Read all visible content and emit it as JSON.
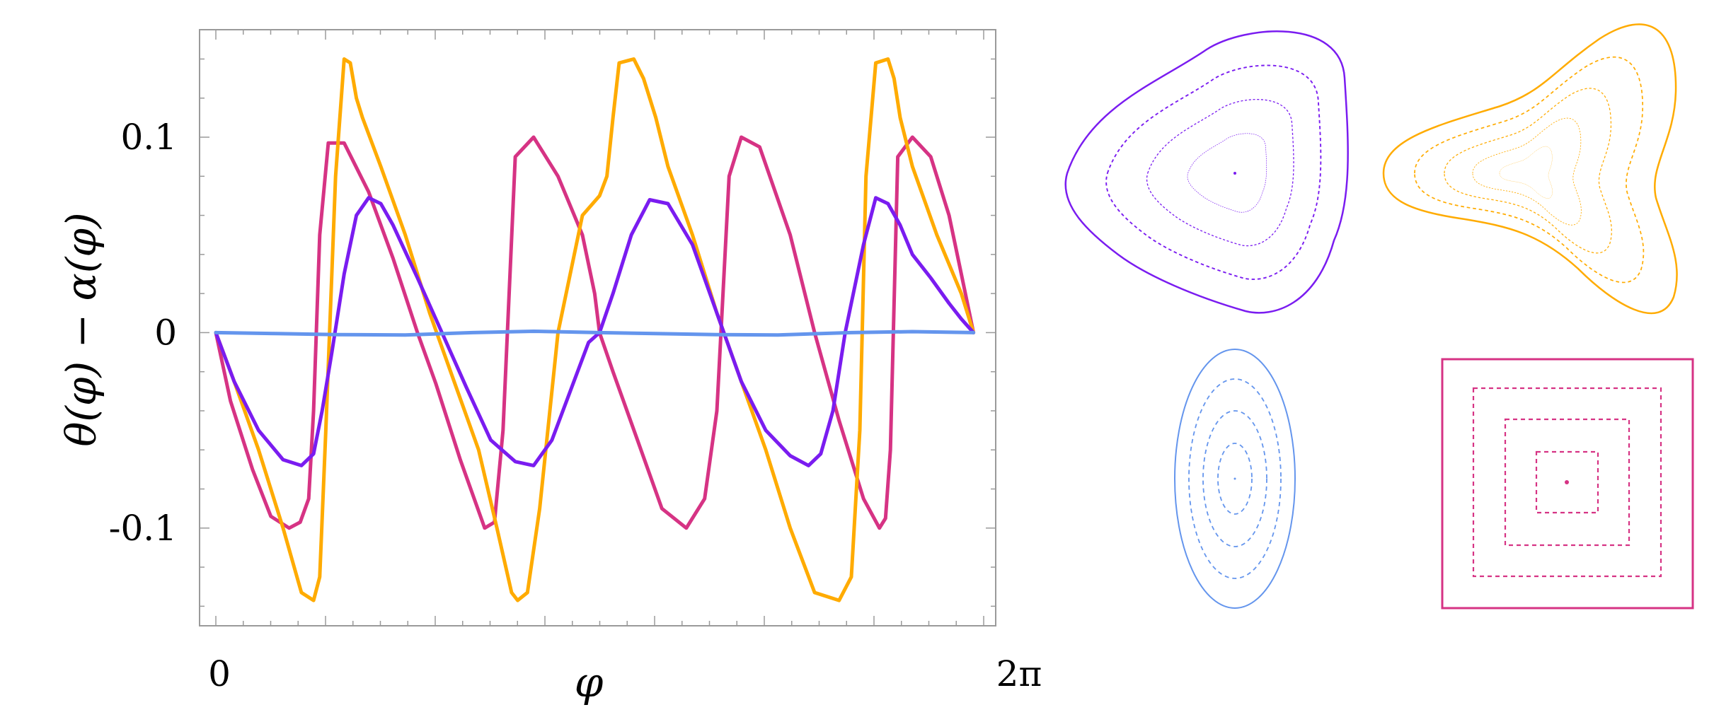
{
  "chart_data": [
    {
      "type": "line",
      "xlabel": "φ",
      "ylabel": "θ(φ) − α(φ)",
      "xlim": [
        0,
        6.2832
      ],
      "ylim": [
        -0.15,
        0.155
      ],
      "xtick_labels": [
        "0",
        "2π"
      ],
      "yticks": [
        0.1,
        0,
        -0.1
      ],
      "ytick_labels": [
        "0.1",
        "0",
        "-0.1"
      ],
      "grid": false,
      "legend": "none",
      "series": [
        {
          "color": "#d63384",
          "x": [
            0,
            0.12,
            0.3,
            0.45,
            0.6,
            0.69,
            0.76,
            0.8,
            0.85,
            0.92,
            1.05,
            1.25,
            1.45,
            1.65,
            1.8,
            2.0,
            2.2,
            2.28,
            2.35,
            2.45,
            2.6,
            2.8,
            3.0,
            3.1,
            3.14,
            3.25,
            3.45,
            3.65,
            3.85,
            4.0,
            4.1,
            4.2,
            4.3,
            4.45,
            4.7,
            4.9,
            5.1,
            5.3,
            5.43,
            5.48,
            5.52,
            5.58,
            5.7,
            5.85,
            6.0,
            6.1,
            6.2
          ],
          "y": [
            0,
            -0.035,
            -0.07,
            -0.094,
            -0.1,
            -0.097,
            -0.085,
            -0.04,
            0.05,
            0.097,
            0.097,
            0.072,
            0.038,
            0.0,
            -0.026,
            -0.065,
            -0.1,
            -0.097,
            -0.05,
            0.09,
            0.1,
            0.08,
            0.05,
            0.02,
            0.0,
            -0.02,
            -0.055,
            -0.09,
            -0.1,
            -0.085,
            -0.04,
            0.08,
            0.1,
            0.095,
            0.05,
            0.0,
            -0.045,
            -0.085,
            -0.1,
            -0.095,
            -0.06,
            0.09,
            0.1,
            0.09,
            0.06,
            0.03,
            0.0
          ]
        },
        {
          "color": "#ffab00",
          "x": [
            0,
            0.15,
            0.35,
            0.55,
            0.7,
            0.8,
            0.85,
            0.9,
            0.98,
            1.05,
            1.1,
            1.15,
            1.2,
            1.35,
            1.55,
            1.75,
            1.95,
            2.15,
            2.3,
            2.42,
            2.47,
            2.55,
            2.65,
            2.8,
            3.0,
            3.14,
            3.2,
            3.25,
            3.3,
            3.42,
            3.5,
            3.6,
            3.7,
            3.9,
            4.1,
            4.3,
            4.5,
            4.7,
            4.9,
            5.1,
            5.2,
            5.27,
            5.32,
            5.4,
            5.5,
            5.55,
            5.6,
            5.7,
            5.9,
            6.1,
            6.2
          ],
          "y": [
            0,
            -0.025,
            -0.06,
            -0.1,
            -0.133,
            -0.137,
            -0.125,
            -0.05,
            0.08,
            0.14,
            0.138,
            0.12,
            0.11,
            0.085,
            0.05,
            0.01,
            -0.025,
            -0.06,
            -0.1,
            -0.133,
            -0.137,
            -0.133,
            -0.09,
            0.0,
            0.06,
            0.07,
            0.08,
            0.11,
            0.138,
            0.14,
            0.13,
            0.11,
            0.085,
            0.05,
            0.01,
            -0.025,
            -0.06,
            -0.1,
            -0.133,
            -0.137,
            -0.125,
            -0.05,
            0.08,
            0.138,
            0.14,
            0.13,
            0.11,
            0.085,
            0.05,
            0.02,
            0.0
          ]
        },
        {
          "color": "#7a1cf0",
          "x": [
            0,
            0.15,
            0.35,
            0.55,
            0.7,
            0.8,
            0.87,
            0.95,
            1.05,
            1.15,
            1.25,
            1.35,
            1.45,
            1.65,
            1.85,
            2.05,
            2.25,
            2.45,
            2.6,
            2.75,
            2.9,
            3.05,
            3.14,
            3.25,
            3.4,
            3.55,
            3.7,
            3.9,
            4.1,
            4.3,
            4.5,
            4.7,
            4.85,
            4.95,
            5.05,
            5.15,
            5.3,
            5.4,
            5.5,
            5.6,
            5.7,
            5.85,
            6.0,
            6.1,
            6.2
          ],
          "y": [
            0,
            -0.025,
            -0.05,
            -0.065,
            -0.068,
            -0.062,
            -0.04,
            -0.01,
            0.03,
            0.06,
            0.069,
            0.066,
            0.055,
            0.028,
            0.0,
            -0.028,
            -0.055,
            -0.066,
            -0.068,
            -0.055,
            -0.03,
            -0.005,
            0.0,
            0.02,
            0.05,
            0.068,
            0.066,
            0.045,
            0.01,
            -0.025,
            -0.05,
            -0.063,
            -0.068,
            -0.062,
            -0.04,
            0.0,
            0.045,
            0.069,
            0.066,
            0.055,
            0.04,
            0.028,
            0.015,
            0.007,
            0.0
          ]
        },
        {
          "color": "#6495ed",
          "x": [
            0,
            0.5,
            1.0,
            1.55,
            2.1,
            2.6,
            3.14,
            3.6,
            4.1,
            4.6,
            5.2,
            5.7,
            6.2
          ],
          "y": [
            0,
            -0.0005,
            -0.001,
            -0.0012,
            0.0,
            0.0007,
            0.0,
            -0.0005,
            -0.001,
            -0.0012,
            0.0,
            0.0005,
            0.0
          ]
        }
      ]
    }
  ]
}
